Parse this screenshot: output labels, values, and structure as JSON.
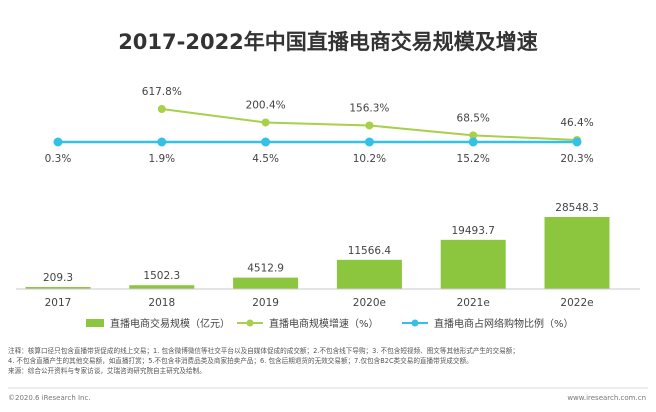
{
  "chart_data": {
    "title": "2017-2022年中国直播电商交易规模及增速",
    "categories": [
      "2017",
      "2018",
      "2019",
      "2020e",
      "2021e",
      "2022e"
    ],
    "series": [
      {
        "name": "直播电商交易规模（亿元）",
        "type": "bar",
        "values": [
          209.3,
          1502.3,
          4512.9,
          11566.4,
          19493.7,
          28548.3
        ],
        "labels": [
          "209.3",
          "1502.3",
          "4512.9",
          "11566.4",
          "19493.7",
          "28548.3"
        ],
        "color": "#8cc63f"
      },
      {
        "name": "直播电商规模增速（%）",
        "type": "line",
        "values": [
          null,
          617.8,
          200.4,
          156.3,
          68.5,
          46.4
        ],
        "labels": [
          "",
          "617.8%",
          "200.4%",
          "156.3%",
          "68.5%",
          "46.4%"
        ],
        "color": "#a8d04a"
      },
      {
        "name": "直播电商占网络购物比例（%）",
        "type": "line",
        "values": [
          0.3,
          1.9,
          4.5,
          10.2,
          15.2,
          20.3
        ],
        "labels": [
          "0.3%",
          "1.9%",
          "4.5%",
          "10.2%",
          "15.2%",
          "20.3%"
        ],
        "color": "#35c0e8"
      }
    ]
  },
  "notes": [
    "注释：核算口径只包含直播带货促成的线上交易；1. 包含微博微信等社交平台以及自媒体促成的成交额；2.不包含线下导购；3. 不包含短视频、图文等其他形式产生的交易额；",
    "4. 不包含直播产生的其他交易额，如直播打赏；5.不包含非消费品类及商家拍卖产品；6. 包含后期退货的无效交易额；7.仅包含B2C类交易的直播带货成交额。",
    "来源：综合公开资料与专家访谈，艾瑞咨询研究院自主研究及绘制。"
  ],
  "footer": {
    "left": "©2020.6 iResearch Inc.",
    "right": "www.iresearch.com.cn"
  }
}
